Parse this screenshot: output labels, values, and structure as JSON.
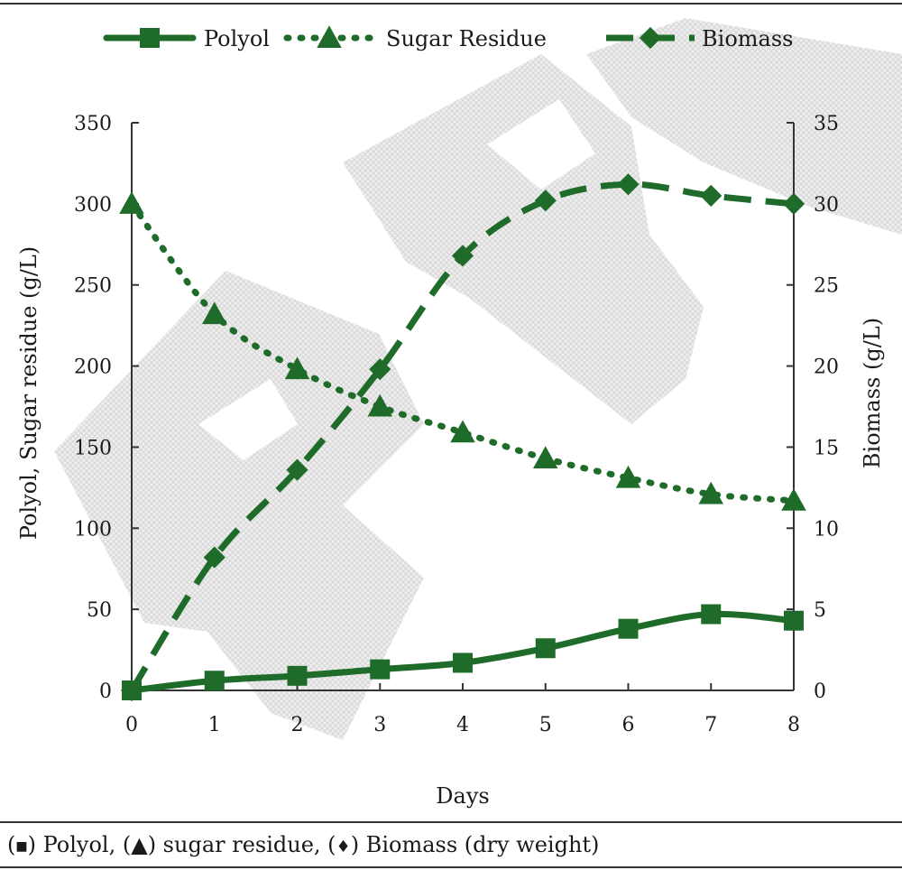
{
  "chart_data": {
    "type": "line",
    "xlabel": "Days",
    "ylabel": "Polyol, Sugar residue (g/L)",
    "y2label": "Biomass (g/L)",
    "x": [
      0,
      1,
      2,
      3,
      4,
      5,
      6,
      7,
      8
    ],
    "xlim": [
      0,
      8
    ],
    "ylim": [
      0,
      350
    ],
    "y2lim": [
      0,
      35
    ],
    "xticks": [
      "0",
      "1",
      "2",
      "3",
      "4",
      "5",
      "6",
      "7",
      "8"
    ],
    "yticks": [
      "0",
      "50",
      "100",
      "150",
      "200",
      "250",
      "300",
      "350"
    ],
    "y2ticks": [
      "0",
      "5",
      "10",
      "15",
      "20",
      "25",
      "30",
      "35"
    ],
    "grid": false,
    "legend_position": "top",
    "series": [
      {
        "name": "Polyol",
        "axis": "left",
        "marker": "square",
        "line_style": "solid",
        "values": [
          0,
          6,
          9,
          13,
          17,
          26,
          38,
          47,
          43
        ]
      },
      {
        "name": "Sugar Residue",
        "axis": "left",
        "marker": "triangle",
        "line_style": "dotted",
        "values": [
          300,
          232,
          198,
          175,
          159,
          143,
          131,
          121,
          117
        ]
      },
      {
        "name": "Biomass",
        "axis": "right",
        "marker": "diamond",
        "line_style": "dashed",
        "values": [
          0,
          8.2,
          13.6,
          19.8,
          26.8,
          30.2,
          31.2,
          30.5,
          30.0
        ]
      }
    ],
    "line_color": "#1e6b2a",
    "watermark_color": "#d9d9d9"
  },
  "caption": {
    "part1": "(",
    "polyol_marker": "■",
    "part2": ") Polyol, (",
    "sugar_marker": "▲",
    "part3": ") sugar residue, (",
    "biomass_marker": "♦",
    "part4": ") Biomass (dry weight)"
  }
}
